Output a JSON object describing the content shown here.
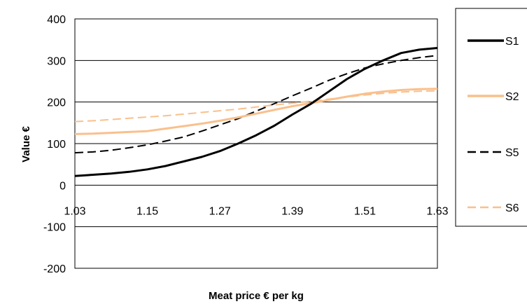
{
  "chart_data": {
    "type": "line",
    "xlabel": "Meat price € per kg",
    "ylabel": "Value €",
    "x_ticks": [
      "1.03",
      "1.15",
      "1.27",
      "1.39",
      "1.51",
      "1.63"
    ],
    "y_ticks": [
      "400",
      "300",
      "200",
      "100",
      "0",
      "-100",
      "-200"
    ],
    "xlim": [
      1.03,
      1.63
    ],
    "ylim": [
      -200,
      400
    ],
    "grid": "horizontal",
    "legend_position": "right",
    "x": [
      1.03,
      1.06,
      1.09,
      1.12,
      1.15,
      1.18,
      1.21,
      1.24,
      1.27,
      1.3,
      1.33,
      1.36,
      1.39,
      1.42,
      1.45,
      1.48,
      1.51,
      1.54,
      1.57,
      1.6,
      1.63
    ],
    "series": [
      {
        "name": "S1",
        "color": "#000000",
        "dash": "solid",
        "values": [
          22,
          25,
          28,
          32,
          38,
          46,
          57,
          68,
          82,
          100,
          120,
          143,
          170,
          195,
          225,
          255,
          280,
          300,
          318,
          326,
          330
        ]
      },
      {
        "name": "S2",
        "color": "#F9C08D",
        "dash": "solid",
        "values": [
          123,
          124,
          126,
          128,
          130,
          136,
          142,
          148,
          155,
          163,
          172,
          181,
          190,
          197,
          205,
          213,
          220,
          225,
          229,
          231,
          232
        ]
      },
      {
        "name": "S5",
        "color": "#000000",
        "dash": "dashed",
        "values": [
          78,
          80,
          84,
          90,
          97,
          106,
          116,
          130,
          145,
          160,
          178,
          196,
          215,
          233,
          252,
          268,
          282,
          292,
          300,
          307,
          312
        ]
      },
      {
        "name": "S6",
        "color": "#F9C08D",
        "dash": "dashed",
        "values": [
          153,
          155,
          158,
          161,
          164,
          167,
          171,
          175,
          179,
          183,
          188,
          193,
          197,
          202,
          207,
          212,
          217,
          221,
          224,
          226,
          227
        ]
      }
    ]
  }
}
